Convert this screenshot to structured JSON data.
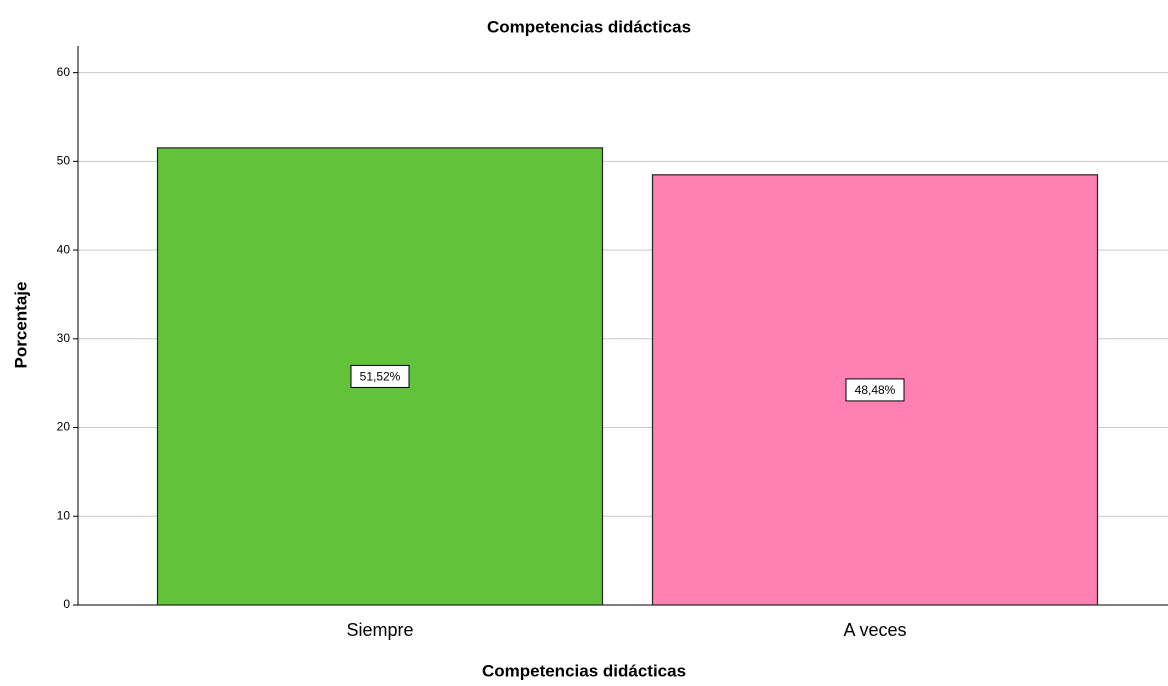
{
  "chart_data": {
    "type": "bar",
    "title": "Competencias didácticas",
    "x_label": "Competencias didácticas",
    "y_label": "Porcentaje",
    "categories": [
      "Siempre",
      "A veces"
    ],
    "values": [
      51.52,
      48.48
    ],
    "value_labels": [
      "51,52%",
      "48,48%"
    ],
    "colors": [
      "#62c23a",
      "#ff80b3"
    ],
    "ylim": [
      0,
      63
    ],
    "yticks": [
      0,
      10,
      20,
      30,
      40,
      50,
      60
    ],
    "grid": true
  }
}
